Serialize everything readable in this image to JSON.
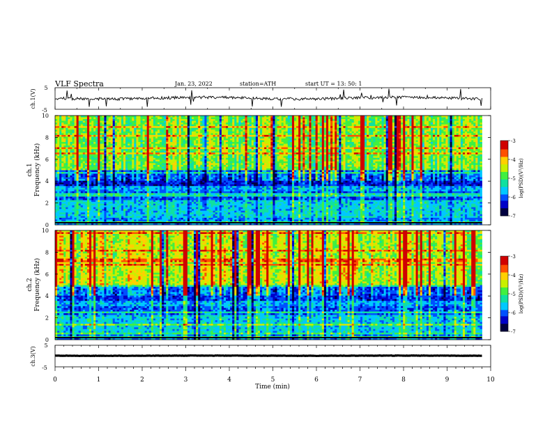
{
  "header": {
    "title": "VLF Spectra",
    "date": "Jan. 23, 2022",
    "station": "station=ATH",
    "start": "start UT = 13: 50: 1"
  },
  "chart_data": [
    {
      "type": "line",
      "name": "ch1-waveform",
      "ylabel": "ch.1(V)",
      "ylim": [
        -5,
        5
      ],
      "yticks": [
        "5",
        "-5"
      ],
      "xlim": [
        0,
        10
      ]
    },
    {
      "type": "heatmap",
      "name": "ch1-spectrogram",
      "ylabel_top": "ch.1",
      "ylabel": "Frequency (kHz)",
      "ylim": [
        0,
        10
      ],
      "yticks": [
        "0",
        "2",
        "4",
        "6",
        "8",
        "10"
      ],
      "xlim": [
        0,
        10
      ],
      "colorbar": {
        "label": "log(PSD)(V²/Hz)",
        "range": [
          -7,
          -3
        ],
        "ticks": [
          "-3",
          "-4",
          "-5",
          "-6",
          "-7"
        ]
      }
    },
    {
      "type": "heatmap",
      "name": "ch2-spectrogram",
      "ylabel_top": "ch.2",
      "ylabel": "Frequency (kHz)",
      "ylim": [
        0,
        10
      ],
      "yticks": [
        "0",
        "2",
        "4",
        "6",
        "8",
        "10"
      ],
      "xlim": [
        0,
        10
      ],
      "colorbar": {
        "label": "log(PSD)(V²/Hz)",
        "range": [
          -7,
          -3
        ],
        "ticks": [
          "-3",
          "-4",
          "-5",
          "-6",
          "-7"
        ]
      }
    },
    {
      "type": "line",
      "name": "ch3-waveform",
      "ylabel": "ch.3(V)",
      "ylim": [
        -5,
        5
      ],
      "yticks": [
        "5",
        "-5"
      ],
      "xlim": [
        0,
        10
      ],
      "xlabel": "Time (min)",
      "xticks": [
        "0",
        "1",
        "2",
        "3",
        "4",
        "5",
        "6",
        "7",
        "8",
        "9",
        "10"
      ],
      "data_end": 9.8
    }
  ],
  "colors": {
    "map": [
      "#000040",
      "#0000c8",
      "#0050ff",
      "#00c8ff",
      "#10e0a0",
      "#40f040",
      "#c8f000",
      "#ffd000",
      "#ff5000",
      "#d00000",
      "#ffffff"
    ]
  }
}
